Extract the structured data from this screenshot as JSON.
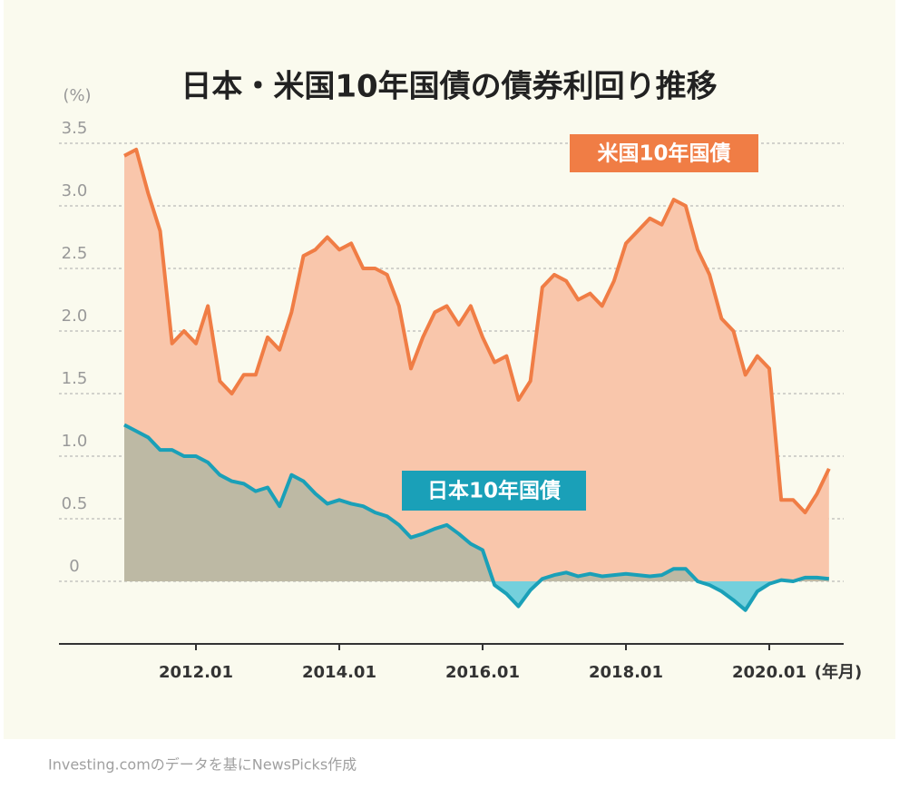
{
  "chart_data": {
    "type": "line",
    "title": "日本・米国10年国債の債券利回り推移",
    "y_label": "(%)",
    "x_label": "(年月)",
    "source": "Investing.comのデータを基にNewsPicks作成",
    "categories": [
      null,
      null,
      null,
      null,
      null,
      null,
      "2012.01",
      null,
      null,
      null,
      null,
      null,
      null,
      null,
      null,
      null,
      null,
      null,
      "2014.01",
      null,
      null,
      null,
      null,
      null,
      null,
      null,
      null,
      null,
      null,
      null,
      "2016.01",
      null,
      null,
      null,
      null,
      null,
      null,
      null,
      null,
      null,
      null,
      null,
      "2018.01",
      null,
      null,
      null,
      null,
      null,
      null,
      null,
      null,
      null,
      null,
      null,
      "2020.01",
      null,
      null,
      null,
      null,
      null
    ],
    "series": [
      {
        "name": "米国10年国債",
        "color": "#f07d45",
        "area_color": "#f9c6ab",
        "values": [
          3.4,
          3.45,
          3.1,
          2.8,
          1.9,
          2.0,
          1.9,
          2.2,
          1.6,
          1.5,
          1.65,
          1.65,
          1.95,
          1.85,
          2.15,
          2.6,
          2.65,
          2.75,
          2.65,
          2.7,
          2.5,
          2.5,
          2.45,
          2.2,
          1.7,
          1.95,
          2.15,
          2.2,
          2.05,
          2.2,
          1.95,
          1.75,
          1.8,
          1.45,
          1.6,
          2.35,
          2.45,
          2.4,
          2.25,
          2.3,
          2.2,
          2.4,
          2.7,
          2.8,
          2.9,
          2.85,
          3.05,
          3.0,
          2.65,
          2.45,
          2.1,
          2.0,
          1.65,
          1.8,
          1.7,
          0.65,
          0.65,
          0.55,
          0.7,
          0.9
        ]
      },
      {
        "name": "日本10年国債",
        "color": "#1aa0b8",
        "area_color": "#bdb9a4",
        "negative_area_color": "#74d0dc",
        "values": [
          1.25,
          1.2,
          1.15,
          1.05,
          1.05,
          1.0,
          1.0,
          0.95,
          0.85,
          0.8,
          0.78,
          0.72,
          0.75,
          0.6,
          0.85,
          0.8,
          0.7,
          0.62,
          0.65,
          0.62,
          0.6,
          0.55,
          0.52,
          0.45,
          0.35,
          0.38,
          0.42,
          0.45,
          0.38,
          0.3,
          0.25,
          -0.03,
          -0.1,
          -0.2,
          -0.07,
          0.02,
          0.05,
          0.07,
          0.04,
          0.06,
          0.04,
          0.05,
          0.06,
          0.05,
          0.04,
          0.05,
          0.1,
          0.1,
          0.0,
          -0.03,
          -0.08,
          -0.15,
          -0.23,
          -0.08,
          -0.02,
          0.01,
          0.0,
          0.03,
          0.03,
          0.02
        ]
      }
    ],
    "ylim": [
      -0.5,
      3.5
    ],
    "yticks": [
      0,
      0.5,
      {
        "value": 1,
        "label": "1.0"
      },
      1.5,
      {
        "value": 2,
        "label": "2.0"
      },
      2.5,
      {
        "value": 3,
        "label": "3.0"
      },
      3.5
    ],
    "grid": true
  }
}
